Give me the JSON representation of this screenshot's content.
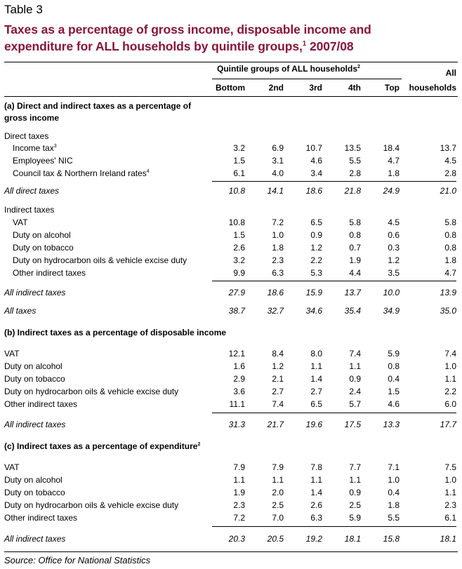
{
  "table_label": "Table 3",
  "title_line1": "Taxes as a percentage of gross income, disposable income and",
  "title_line2": "expenditure for ALL households by quintile groups,",
  "title_sup": "1",
  "title_year": " 2007/08",
  "header": {
    "group_label": "Quintile groups of ALL households",
    "group_sup": "2",
    "all_line1": "All",
    "all_line2": "households",
    "columns": [
      "Bottom",
      "2nd",
      "3rd",
      "4th",
      "Top"
    ]
  },
  "sections": {
    "a": {
      "heading_line1": "(a) Direct and indirect taxes as a percentage of",
      "heading_line2": "gross income",
      "direct_label": "Direct taxes",
      "direct_rows": [
        {
          "label": "Income tax",
          "sup": "3",
          "values": [
            "3.2",
            "6.9",
            "10.7",
            "13.5",
            "18.4",
            "13.7"
          ]
        },
        {
          "label": "Employees' NIC",
          "sup": "",
          "values": [
            "1.5",
            "3.1",
            "4.6",
            "5.5",
            "4.7",
            "4.5"
          ]
        },
        {
          "label": "Council tax & Northern Ireland rates",
          "sup": "4",
          "values": [
            "6.1",
            "4.0",
            "3.4",
            "2.8",
            "1.8",
            "2.8"
          ]
        }
      ],
      "direct_total": {
        "label": "All direct taxes",
        "values": [
          "10.8",
          "14.1",
          "18.6",
          "21.8",
          "24.9",
          "21.0"
        ]
      },
      "indirect_label": "Indirect taxes",
      "indirect_rows": [
        {
          "label": "VAT",
          "values": [
            "10.8",
            "7.2",
            "6.5",
            "5.8",
            "4.5",
            "5.8"
          ]
        },
        {
          "label": "Duty on alcohol",
          "values": [
            "1.5",
            "1.0",
            "0.9",
            "0.8",
            "0.6",
            "0.8"
          ]
        },
        {
          "label": "Duty on tobacco",
          "values": [
            "2.6",
            "1.8",
            "1.2",
            "0.7",
            "0.3",
            "0.8"
          ]
        },
        {
          "label": "Duty on hydrocarbon oils & vehicle excise duty",
          "values": [
            "3.2",
            "2.3",
            "2.2",
            "1.9",
            "1.2",
            "1.8"
          ]
        },
        {
          "label": "Other indirect taxes",
          "values": [
            "9.9",
            "6.3",
            "5.3",
            "4.4",
            "3.5",
            "4.7"
          ]
        }
      ],
      "indirect_total": {
        "label": "All indirect taxes",
        "values": [
          "27.9",
          "18.6",
          "15.9",
          "13.7",
          "10.0",
          "13.9"
        ]
      },
      "all_total": {
        "label": "All taxes",
        "values": [
          "38.7",
          "32.7",
          "34.6",
          "35.4",
          "34.9",
          "35.0"
        ]
      }
    },
    "b": {
      "heading": "(b) Indirect taxes as a percentage of disposable income",
      "rows": [
        {
          "label": "VAT",
          "values": [
            "12.1",
            "8.4",
            "8.0",
            "7.4",
            "5.9",
            "7.4"
          ]
        },
        {
          "label": "Duty on alcohol",
          "values": [
            "1.6",
            "1.2",
            "1.1",
            "1.1",
            "0.8",
            "1.0"
          ]
        },
        {
          "label": "Duty on tobacco",
          "values": [
            "2.9",
            "2.1",
            "1.4",
            "0.9",
            "0.4",
            "1.1"
          ]
        },
        {
          "label": "Duty on hydrocarbon oils & vehicle excise duty",
          "values": [
            "3.6",
            "2.7",
            "2.7",
            "2.4",
            "1.5",
            "2.2"
          ]
        },
        {
          "label": "Other indirect taxes",
          "values": [
            "11.1",
            "7.4",
            "6.5",
            "5.7",
            "4.6",
            "6.0"
          ]
        }
      ],
      "total": {
        "label": "All indirect taxes",
        "values": [
          "31.3",
          "21.7",
          "19.6",
          "17.5",
          "13.3",
          "17.7"
        ]
      }
    },
    "c": {
      "heading": "(c) Indirect taxes as a percentage of expenditure",
      "heading_sup": "2",
      "rows": [
        {
          "label": "VAT",
          "values": [
            "7.9",
            "7.9",
            "7.8",
            "7.7",
            "7.1",
            "7.5"
          ]
        },
        {
          "label": "Duty on alcohol",
          "values": [
            "1.1",
            "1.1",
            "1.1",
            "1.1",
            "1.0",
            "1.0"
          ]
        },
        {
          "label": "Duty on tobacco",
          "values": [
            "1.9",
            "2.0",
            "1.4",
            "0.9",
            "0.4",
            "1.1"
          ]
        },
        {
          "label": "Duty on hydrocarbon oils & vehicle excise duty",
          "values": [
            "2.3",
            "2.5",
            "2.6",
            "2.5",
            "1.8",
            "2.3"
          ]
        },
        {
          "label": "Other indirect taxes",
          "values": [
            "7.2",
            "7.0",
            "6.3",
            "5.9",
            "5.5",
            "6.1"
          ]
        }
      ],
      "total": {
        "label": "All indirect taxes",
        "values": [
          "20.3",
          "20.5",
          "19.2",
          "18.1",
          "15.8",
          "18.1"
        ]
      }
    }
  },
  "source": "Source: Office for National Statistics"
}
